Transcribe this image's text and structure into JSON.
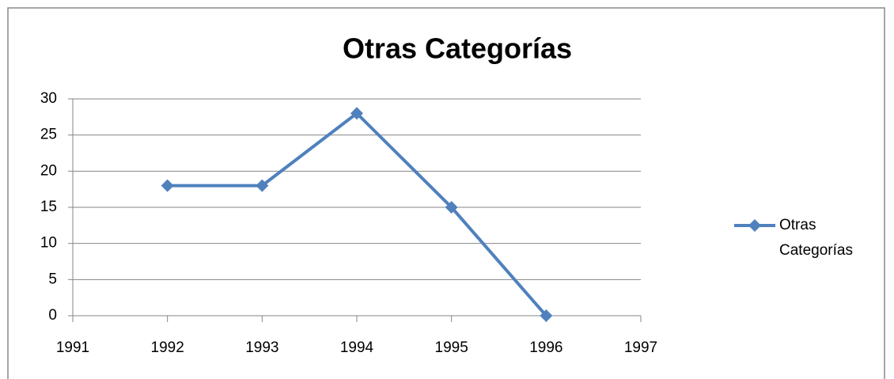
{
  "chart_data": {
    "type": "line",
    "title": "Otras Categorías",
    "x": [
      1992,
      1993,
      1994,
      1995,
      1996
    ],
    "series": [
      {
        "name": "Otras Categorías",
        "color": "#4f81bd",
        "values": [
          18,
          18,
          28,
          15,
          0
        ]
      }
    ],
    "xlim": [
      1991,
      1997
    ],
    "xticks": [
      1991,
      1992,
      1993,
      1994,
      1995,
      1996,
      1997
    ],
    "ylim": [
      0,
      30
    ],
    "yticks": [
      0,
      5,
      10,
      15,
      20,
      25,
      30
    ],
    "grid": true,
    "legend": "right"
  }
}
